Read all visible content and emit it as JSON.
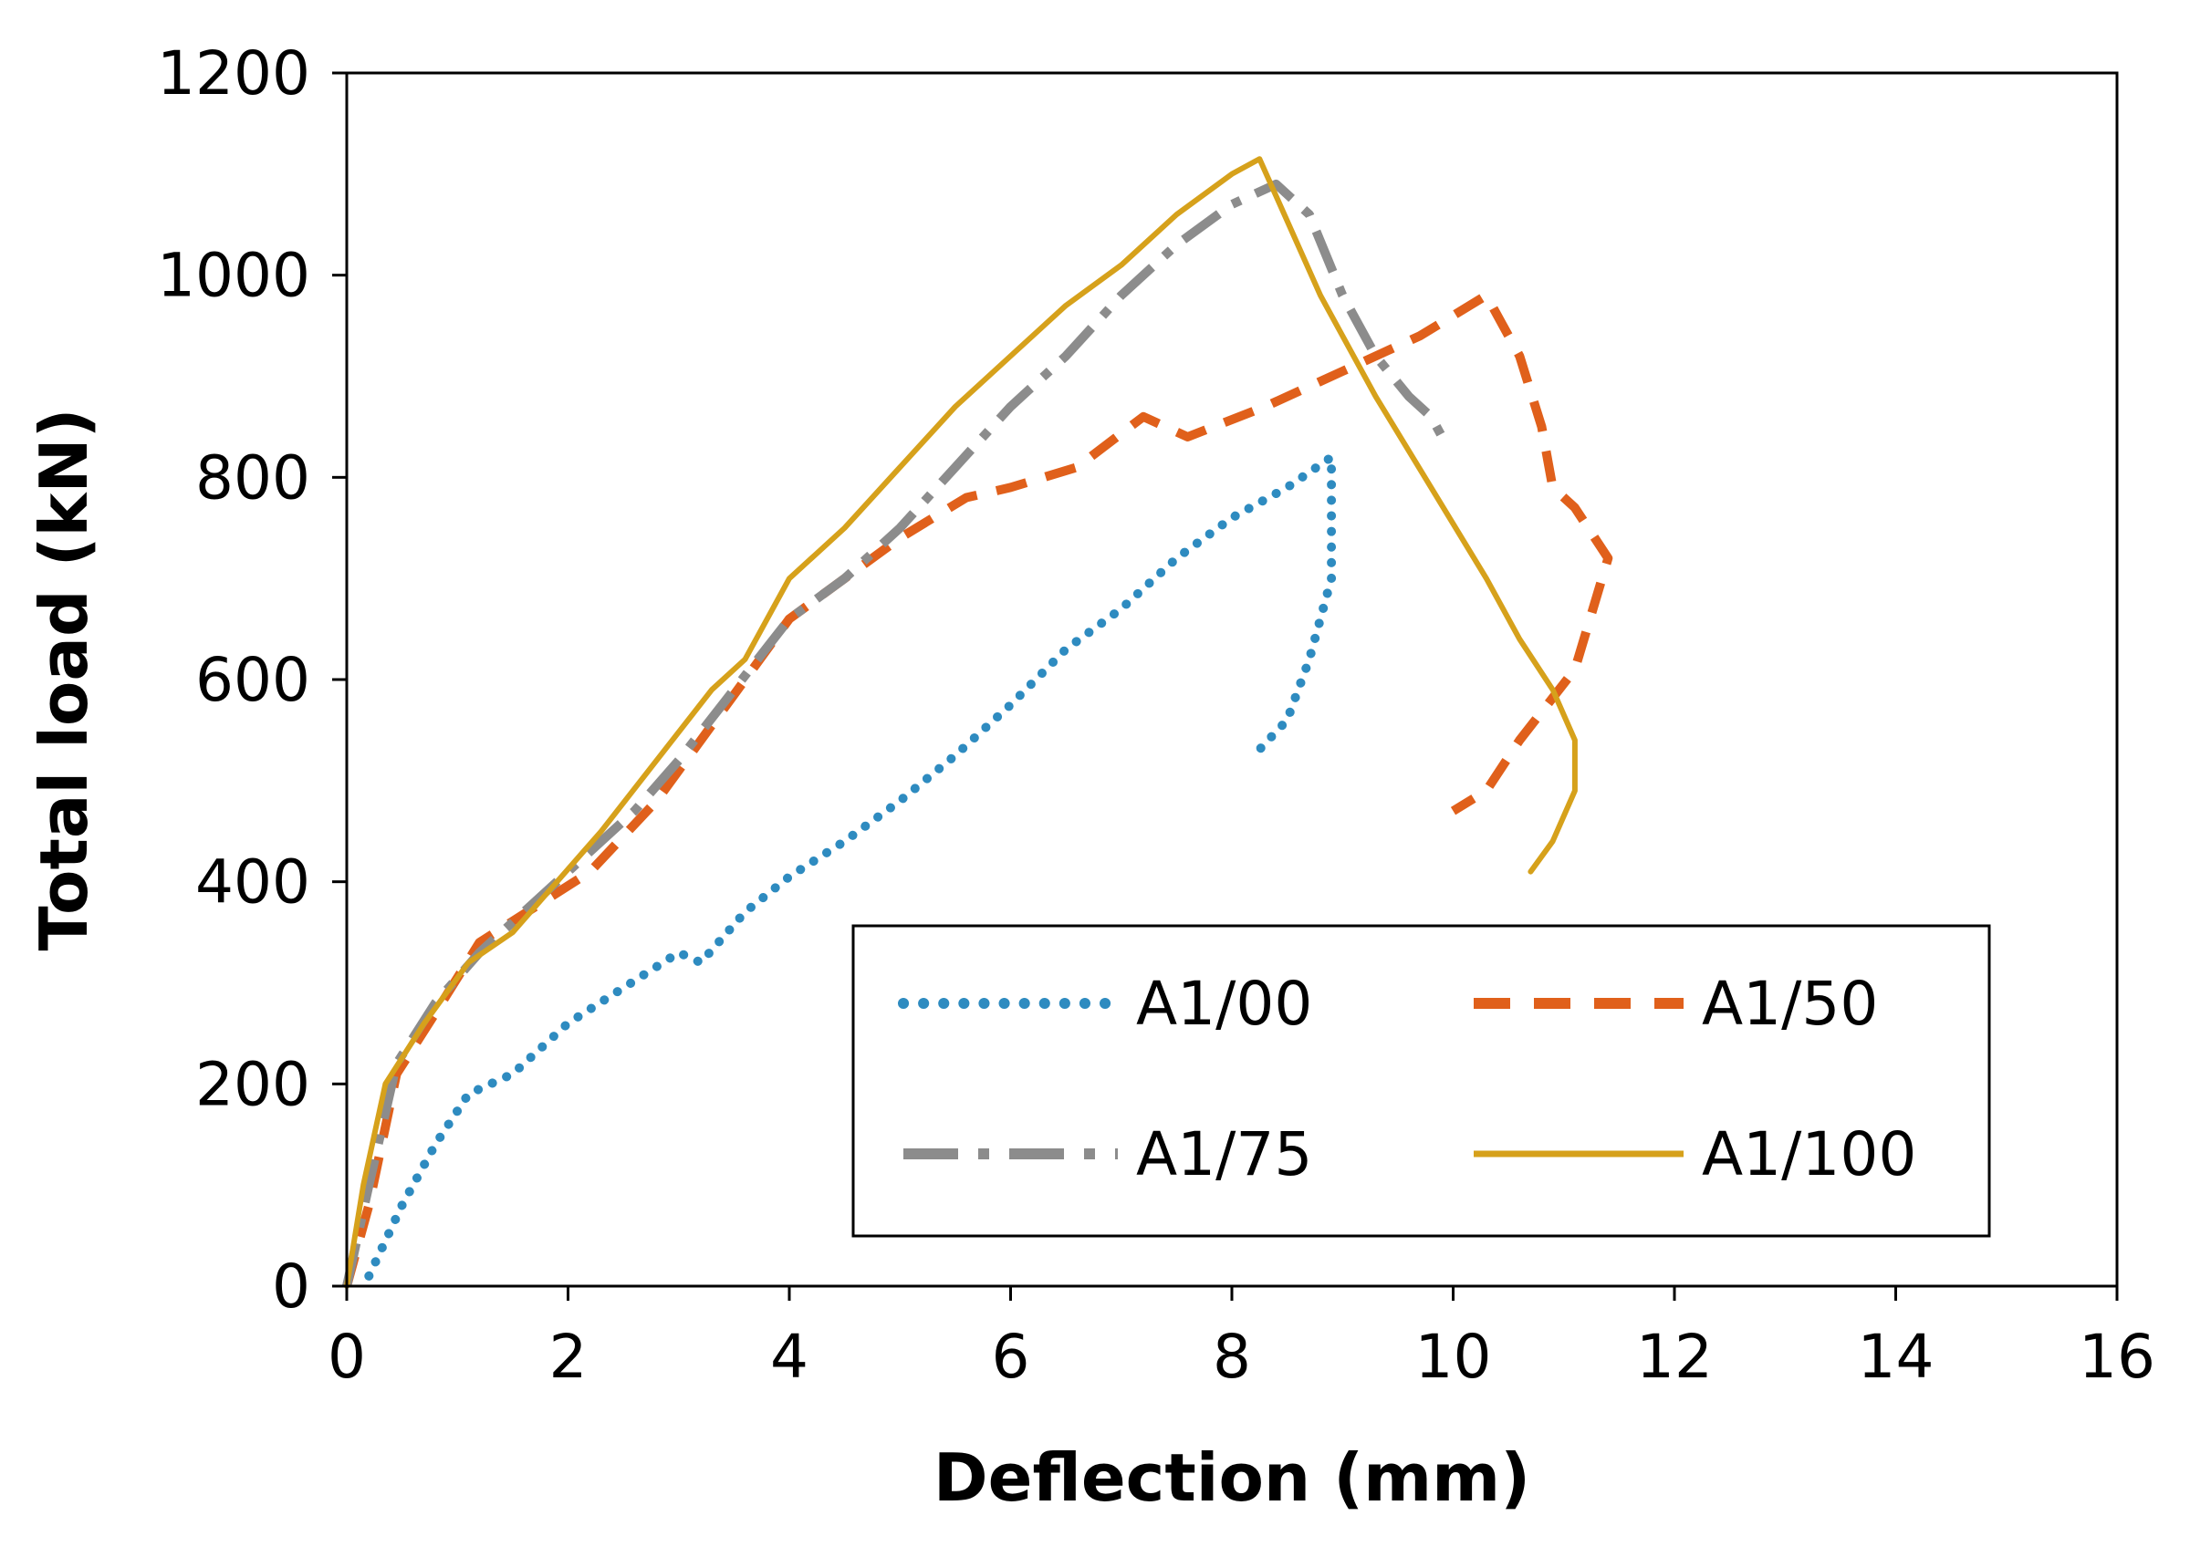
{
  "chart_data": {
    "type": "line",
    "title": "",
    "xlabel": "Deflection (mm)",
    "ylabel": "Total load (kN)",
    "xlim": [
      0,
      16
    ],
    "ylim": [
      0,
      1200
    ],
    "xticks": [
      0,
      2,
      4,
      6,
      8,
      10,
      12,
      14,
      16
    ],
    "yticks": [
      0,
      200,
      400,
      600,
      800,
      1000,
      1200
    ],
    "grid": false,
    "legend_position": "lower-right",
    "series": [
      {
        "name": "A1/00",
        "style": "dotted",
        "color": "#2E8BC0",
        "points": [
          [
            0.2,
            10
          ],
          [
            0.5,
            80
          ],
          [
            0.8,
            140
          ],
          [
            1.1,
            190
          ],
          [
            1.5,
            210
          ],
          [
            2.0,
            260
          ],
          [
            2.5,
            295
          ],
          [
            3.0,
            330
          ],
          [
            3.2,
            320
          ],
          [
            3.6,
            370
          ],
          [
            4.0,
            405
          ],
          [
            4.5,
            440
          ],
          [
            5.0,
            480
          ],
          [
            5.5,
            525
          ],
          [
            6.0,
            575
          ],
          [
            6.5,
            630
          ],
          [
            7.0,
            670
          ],
          [
            7.5,
            720
          ],
          [
            8.0,
            760
          ],
          [
            8.5,
            790
          ],
          [
            8.9,
            820
          ],
          [
            8.9,
            790
          ],
          [
            8.9,
            700
          ],
          [
            8.7,
            620
          ],
          [
            8.5,
            560
          ],
          [
            8.2,
            525
          ]
        ]
      },
      {
        "name": "A1/50",
        "style": "dashed",
        "color": "#E0601B",
        "points": [
          [
            0,
            0
          ],
          [
            0.2,
            80
          ],
          [
            0.45,
            210
          ],
          [
            0.8,
            270
          ],
          [
            1.2,
            340
          ],
          [
            1.7,
            375
          ],
          [
            2.2,
            410
          ],
          [
            2.8,
            480
          ],
          [
            3.4,
            570
          ],
          [
            4.0,
            660
          ],
          [
            4.5,
            700
          ],
          [
            5.0,
            740
          ],
          [
            5.6,
            780
          ],
          [
            6.0,
            790
          ],
          [
            6.6,
            810
          ],
          [
            7.2,
            860
          ],
          [
            7.6,
            840
          ],
          [
            8.3,
            870
          ],
          [
            9.0,
            905
          ],
          [
            9.7,
            940
          ],
          [
            10.3,
            980
          ],
          [
            10.6,
            920
          ],
          [
            10.8,
            850
          ],
          [
            10.9,
            790
          ],
          [
            11.1,
            770
          ],
          [
            11.4,
            720
          ],
          [
            11.1,
            610
          ],
          [
            10.6,
            540
          ],
          [
            10.3,
            490
          ],
          [
            10.0,
            470
          ]
        ]
      },
      {
        "name": "A1/75",
        "style": "dash-dot",
        "color": "#8C8C8C",
        "points": [
          [
            0,
            0
          ],
          [
            0.2,
            100
          ],
          [
            0.45,
            220
          ],
          [
            0.8,
            280
          ],
          [
            1.2,
            330
          ],
          [
            1.7,
            380
          ],
          [
            2.2,
            430
          ],
          [
            2.6,
            470
          ],
          [
            3.0,
            520
          ],
          [
            3.5,
            590
          ],
          [
            4.0,
            660
          ],
          [
            4.5,
            700
          ],
          [
            5.0,
            750
          ],
          [
            5.5,
            810
          ],
          [
            6.0,
            870
          ],
          [
            6.5,
            920
          ],
          [
            7.0,
            980
          ],
          [
            7.5,
            1030
          ],
          [
            8.0,
            1070
          ],
          [
            8.4,
            1090
          ],
          [
            8.7,
            1060
          ],
          [
            9.0,
            980
          ],
          [
            9.3,
            920
          ],
          [
            9.6,
            880
          ],
          [
            9.8,
            860
          ],
          [
            9.9,
            840
          ]
        ]
      },
      {
        "name": "A1/100",
        "style": "solid",
        "color": "#D6A11B",
        "points": [
          [
            0,
            0
          ],
          [
            0.15,
            100
          ],
          [
            0.35,
            200
          ],
          [
            0.7,
            260
          ],
          [
            1.1,
            320
          ],
          [
            1.5,
            350
          ],
          [
            1.9,
            400
          ],
          [
            2.3,
            450
          ],
          [
            2.8,
            520
          ],
          [
            3.3,
            590
          ],
          [
            3.6,
            620
          ],
          [
            4.0,
            700
          ],
          [
            4.5,
            750
          ],
          [
            5.0,
            810
          ],
          [
            5.5,
            870
          ],
          [
            6.0,
            920
          ],
          [
            6.5,
            970
          ],
          [
            7.0,
            1010
          ],
          [
            7.5,
            1060
          ],
          [
            8.0,
            1100
          ],
          [
            8.25,
            1115
          ],
          [
            8.8,
            980
          ],
          [
            9.3,
            880
          ],
          [
            9.8,
            790
          ],
          [
            10.3,
            700
          ],
          [
            10.6,
            640
          ],
          [
            10.9,
            590
          ],
          [
            11.1,
            540
          ],
          [
            11.1,
            490
          ],
          [
            10.9,
            440
          ],
          [
            10.7,
            410
          ]
        ]
      }
    ]
  }
}
